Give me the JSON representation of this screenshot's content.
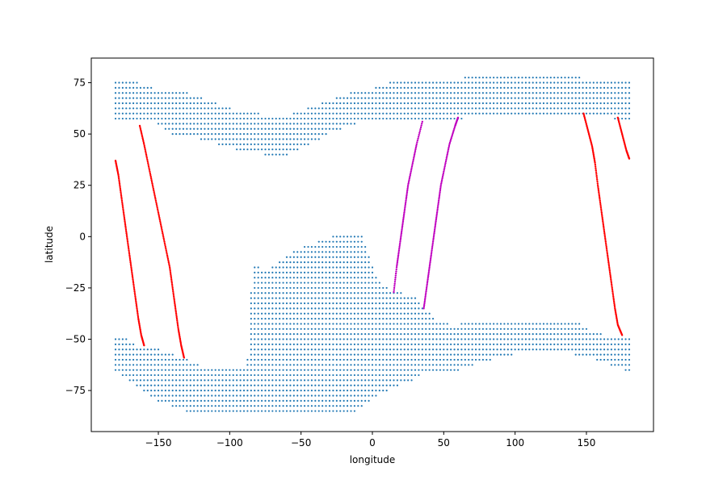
{
  "chart_data": {
    "type": "scatter",
    "title": "",
    "xlabel": "longitude",
    "ylabel": "latitude",
    "xlim": [
      -197,
      197
    ],
    "ylim": [
      -95,
      87
    ],
    "xticks": [
      -150,
      -100,
      -50,
      0,
      50,
      100,
      150
    ],
    "yticks": [
      -75,
      -50,
      -25,
      0,
      25,
      50,
      75
    ],
    "xtick_labels": [
      "−150",
      "−100",
      "−50",
      "0",
      "50",
      "100",
      "150"
    ],
    "ytick_labels": [
      "−75",
      "−50",
      "−25",
      "0",
      "25",
      "50",
      "75"
    ],
    "grid": false,
    "legend": false,
    "colors": {
      "grid_points": "#1f77b4",
      "red_tracks": "#ff0000",
      "magenta_tracks": "#bf00bf"
    },
    "grid_points": {
      "spacing_deg": 2.5,
      "northern_band": [
        [
          -180,
          57,
          77
        ],
        [
          -172,
          57,
          75
        ],
        [
          -164,
          57,
          75
        ],
        [
          -156,
          57,
          73
        ],
        [
          -148,
          53,
          71
        ],
        [
          -140,
          50,
          71
        ],
        [
          -132,
          49,
          71
        ],
        [
          -124,
          48,
          69
        ],
        [
          -116,
          46,
          67
        ],
        [
          -108,
          45,
          65
        ],
        [
          -100,
          43,
          63
        ],
        [
          -92,
          42,
          61
        ],
        [
          -84,
          41,
          61
        ],
        [
          -76,
          40,
          59
        ],
        [
          -68,
          39,
          59
        ],
        [
          -60,
          40,
          59
        ],
        [
          -52,
          42,
          61
        ],
        [
          -44,
          45,
          63
        ],
        [
          -36,
          48,
          65
        ],
        [
          -28,
          51,
          67
        ],
        [
          -20,
          53,
          69
        ],
        [
          -12,
          55,
          71
        ],
        [
          -4,
          56,
          71
        ],
        [
          4,
          57,
          73
        ],
        [
          12,
          57,
          75
        ],
        [
          20,
          57,
          75
        ],
        [
          28,
          57,
          76
        ],
        [
          36,
          57,
          77
        ],
        [
          44,
          57,
          77
        ],
        [
          52,
          57,
          77
        ],
        [
          60,
          57,
          77
        ],
        [
          68,
          58,
          78
        ],
        [
          76,
          58,
          79
        ],
        [
          84,
          58,
          79
        ],
        [
          92,
          58,
          79
        ],
        [
          100,
          59,
          79
        ],
        [
          108,
          60,
          79
        ],
        [
          116,
          60,
          79
        ],
        [
          124,
          60,
          79
        ],
        [
          132,
          60,
          79
        ],
        [
          140,
          60,
          79
        ],
        [
          148,
          60,
          77
        ],
        [
          156,
          59,
          77
        ],
        [
          164,
          58,
          77
        ],
        [
          172,
          57,
          77
        ],
        [
          180,
          57,
          77
        ]
      ],
      "southern_mass": [
        [
          -180,
          -65,
          -49
        ],
        [
          -176,
          -68,
          -49
        ],
        [
          -172,
          -70,
          -50
        ],
        [
          -168,
          -72,
          -52
        ],
        [
          -164,
          -74,
          -54
        ],
        [
          -160,
          -76,
          -55
        ],
        [
          -156,
          -78,
          -55
        ],
        [
          -152,
          -80,
          -55
        ],
        [
          -148,
          -81,
          -55
        ],
        [
          -144,
          -82,
          -56
        ],
        [
          -140,
          -83,
          -57
        ],
        [
          -136,
          -84,
          -58
        ],
        [
          -132,
          -85,
          -59
        ],
        [
          -128,
          -85,
          -61
        ],
        [
          -124,
          -85,
          -62
        ],
        [
          -120,
          -85,
          -63
        ],
        [
          -116,
          -86,
          -64
        ],
        [
          -112,
          -86,
          -65
        ],
        [
          -108,
          -86,
          -65
        ],
        [
          -104,
          -86,
          -65
        ],
        [
          -100,
          -87,
          -65
        ],
        [
          -96,
          -87,
          -65
        ],
        [
          -92,
          -87,
          -65
        ],
        [
          -88,
          -87,
          -65
        ],
        [
          -84,
          -87,
          -13
        ],
        [
          -80,
          -87,
          -15
        ],
        [
          -76,
          -87,
          -18
        ],
        [
          -72,
          -87,
          -16
        ],
        [
          -68,
          -87,
          -14
        ],
        [
          -64,
          -87,
          -12
        ],
        [
          -60,
          -87,
          -10
        ],
        [
          -56,
          -87,
          -8
        ],
        [
          -52,
          -87,
          -6
        ],
        [
          -48,
          -87,
          -5
        ],
        [
          -44,
          -87,
          -4
        ],
        [
          -40,
          -87,
          -3
        ],
        [
          -36,
          -87,
          -2
        ],
        [
          -32,
          -87,
          -1
        ],
        [
          -28,
          -87,
          0
        ],
        [
          -24,
          -87,
          1
        ],
        [
          -20,
          -87,
          1
        ],
        [
          -16,
          -87,
          1
        ],
        [
          -12,
          -85,
          2
        ],
        [
          -8,
          -83,
          2
        ],
        [
          -4,
          -81,
          -6
        ],
        [
          0,
          -79,
          -14
        ],
        [
          4,
          -77,
          -20
        ],
        [
          8,
          -76,
          -23
        ],
        [
          12,
          -75,
          -25
        ],
        [
          16,
          -73,
          -26
        ],
        [
          20,
          -72,
          -27
        ],
        [
          24,
          -71,
          -28
        ],
        [
          28,
          -70,
          -29
        ],
        [
          32,
          -68,
          -31
        ],
        [
          36,
          -67,
          -34
        ],
        [
          40,
          -66,
          -37
        ],
        [
          44,
          -66,
          -40
        ],
        [
          48,
          -66,
          -41
        ],
        [
          52,
          -66,
          -42
        ],
        [
          56,
          -66,
          -43
        ],
        [
          60,
          -65,
          -43
        ],
        [
          64,
          -64,
          -42
        ],
        [
          68,
          -63,
          -42
        ],
        [
          72,
          -62,
          -42
        ],
        [
          76,
          -61,
          -41
        ],
        [
          80,
          -60,
          -41
        ],
        [
          84,
          -60,
          -41
        ],
        [
          88,
          -59,
          -41
        ],
        [
          92,
          -58,
          -41
        ],
        [
          96,
          -58,
          -41
        ],
        [
          100,
          -57,
          -41
        ],
        [
          104,
          -57,
          -41
        ],
        [
          108,
          -57,
          -41
        ],
        [
          112,
          -57,
          -41
        ],
        [
          116,
          -57,
          -41
        ],
        [
          120,
          -57,
          -41
        ],
        [
          124,
          -57,
          -41
        ],
        [
          128,
          -57,
          -41
        ],
        [
          132,
          -57,
          -41
        ],
        [
          136,
          -57,
          -41
        ],
        [
          140,
          -57,
          -41
        ],
        [
          144,
          -58,
          -42
        ],
        [
          148,
          -58,
          -44
        ],
        [
          152,
          -59,
          -45
        ],
        [
          156,
          -60,
          -46
        ],
        [
          160,
          -61,
          -47
        ],
        [
          164,
          -62,
          -48
        ],
        [
          168,
          -63,
          -49
        ],
        [
          172,
          -64,
          -49
        ],
        [
          176,
          -65,
          -49
        ],
        [
          180,
          -66,
          -49
        ]
      ]
    },
    "tracks": [
      {
        "color": "red",
        "points": [
          [
            -180,
            37
          ],
          [
            -178,
            30
          ],
          [
            -176,
            20
          ],
          [
            -174,
            10
          ],
          [
            -172,
            0
          ],
          [
            -170,
            -10
          ],
          [
            -168,
            -20
          ],
          [
            -166,
            -30
          ],
          [
            -164,
            -40
          ],
          [
            -162,
            -48
          ],
          [
            -160,
            -53
          ]
        ]
      },
      {
        "color": "red",
        "points": [
          [
            -163,
            54
          ],
          [
            -160,
            45
          ],
          [
            -157,
            35
          ],
          [
            -154,
            25
          ],
          [
            -151,
            15
          ],
          [
            -148,
            5
          ],
          [
            -145,
            -5
          ],
          [
            -142,
            -15
          ],
          [
            -140,
            -25
          ],
          [
            -138,
            -35
          ],
          [
            -136,
            -45
          ],
          [
            -134,
            -53
          ],
          [
            -132,
            -59
          ]
        ]
      },
      {
        "color": "magenta",
        "points": [
          [
            15,
            -27
          ],
          [
            17,
            -15
          ],
          [
            19,
            -5
          ],
          [
            21,
            5
          ],
          [
            23,
            15
          ],
          [
            25,
            25
          ],
          [
            28,
            35
          ],
          [
            31,
            45
          ],
          [
            35,
            56
          ]
        ]
      },
      {
        "color": "magenta",
        "points": [
          [
            36,
            -35
          ],
          [
            38,
            -25
          ],
          [
            40,
            -15
          ],
          [
            42,
            -5
          ],
          [
            44,
            5
          ],
          [
            46,
            15
          ],
          [
            48,
            25
          ],
          [
            51,
            35
          ],
          [
            54,
            45
          ],
          [
            58,
            54
          ],
          [
            60,
            58
          ]
        ]
      },
      {
        "color": "red",
        "points": [
          [
            148,
            60
          ],
          [
            151,
            52
          ],
          [
            154,
            44
          ],
          [
            156,
            36
          ],
          [
            158,
            25
          ],
          [
            160,
            15
          ],
          [
            162,
            5
          ],
          [
            164,
            -5
          ],
          [
            166,
            -15
          ],
          [
            168,
            -25
          ],
          [
            170,
            -35
          ],
          [
            172,
            -43
          ],
          [
            175,
            -48
          ]
        ]
      },
      {
        "color": "red",
        "points": [
          [
            172,
            58
          ],
          [
            175,
            50
          ],
          [
            178,
            42
          ],
          [
            180,
            38
          ]
        ]
      }
    ]
  }
}
